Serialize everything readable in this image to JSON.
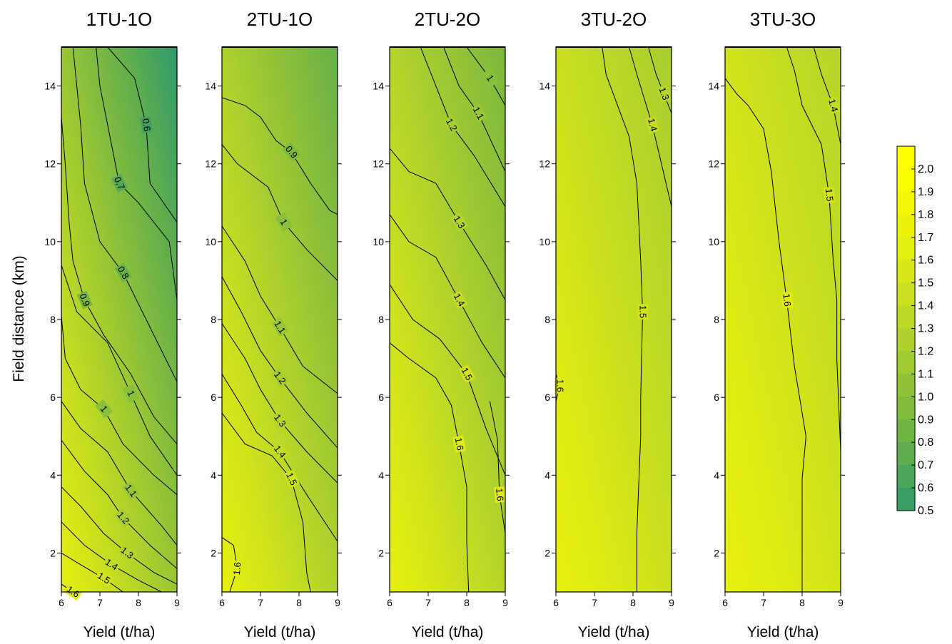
{
  "chart_data": {
    "type": "heatmap",
    "subtype": "filled-contour",
    "ylabel": "Field distance (km)",
    "xlabel": "Yield (t/ha)",
    "xlim": [
      6,
      9
    ],
    "ylim": [
      1,
      15
    ],
    "x_ticks": [
      "6",
      "7",
      "8",
      "9"
    ],
    "y_ticks": [
      "2",
      "4",
      "6",
      "8",
      "10",
      "12",
      "14"
    ],
    "colorbar": {
      "min": 0.5,
      "max": 2.1,
      "labels": [
        "2.0",
        "1.9",
        "1.8",
        "1.7",
        "1.6",
        "1.5",
        "1.4",
        "1.3",
        "1.2",
        "1.1",
        "1.0",
        "0.9",
        "0.8",
        "0.7",
        "0.6",
        "0.5"
      ],
      "colors": {
        "0.5": "#2f9a6c",
        "0.9": "#7ab73e",
        "1.3": "#b5d52a",
        "1.6": "#dfeb13",
        "2.0": "#ffff00"
      }
    },
    "panels": [
      {
        "title": "1TU-1O",
        "contours": [
          {
            "level": "0.6",
            "points": [
              [
                7.2,
                15
              ],
              [
                7.9,
                14.2
              ],
              [
                8.2,
                13
              ],
              [
                8.3,
                11.5
              ],
              [
                9,
                10.5
              ]
            ]
          },
          {
            "level": "0.7",
            "points": [
              [
                6.9,
                15
              ],
              [
                7.0,
                14
              ],
              [
                7.3,
                12.5
              ],
              [
                7.5,
                11.5
              ],
              [
                8.0,
                11
              ],
              [
                8.8,
                10
              ],
              [
                9,
                8.5
              ]
            ]
          },
          {
            "level": "0.8",
            "points": [
              [
                6.3,
                15
              ],
              [
                6.5,
                13
              ],
              [
                6.6,
                11.5
              ],
              [
                7.0,
                10
              ],
              [
                7.6,
                9.2
              ],
              [
                8.2,
                8
              ],
              [
                8.8,
                6.8
              ],
              [
                9,
                6.4
              ]
            ]
          },
          {
            "level": "0.9",
            "points": [
              [
                6,
                13.2
              ],
              [
                6.1,
                12
              ],
              [
                6.2,
                10.5
              ],
              [
                6.3,
                9.5
              ],
              [
                6.6,
                8.5
              ],
              [
                7.1,
                7.6
              ],
              [
                7.8,
                6.6
              ],
              [
                8.4,
                5.5
              ],
              [
                9,
                4.8
              ]
            ]
          },
          {
            "level": "1",
            "points": [
              [
                6,
                9.4
              ],
              [
                6.4,
                8.2
              ],
              [
                7.2,
                7.4
              ],
              [
                7.8,
                6.1
              ],
              [
                8.3,
                5.0
              ],
              [
                9,
                4.0
              ]
            ]
          },
          {
            "level": "1",
            "points": [
              [
                6,
                8.1
              ],
              [
                6.1,
                7
              ],
              [
                6.5,
                6.2
              ],
              [
                7.1,
                5.7
              ],
              [
                7.6,
                4.8
              ],
              [
                8.4,
                4.0
              ],
              [
                9,
                3.5
              ]
            ]
          },
          {
            "level": "1.1",
            "points": [
              [
                6,
                5.9
              ],
              [
                6.5,
                5.2
              ],
              [
                7.2,
                4.6
              ],
              [
                7.8,
                3.6
              ],
              [
                8.6,
                2.7
              ],
              [
                9,
                2.2
              ]
            ]
          },
          {
            "level": "1.2",
            "points": [
              [
                6,
                4.9
              ],
              [
                6.6,
                4.1
              ],
              [
                7.2,
                3.5
              ],
              [
                7.6,
                2.9
              ],
              [
                8.3,
                2.2
              ],
              [
                9,
                1.6
              ]
            ]
          },
          {
            "level": "1.3",
            "points": [
              [
                6,
                3.7
              ],
              [
                6.5,
                3.2
              ],
              [
                7.1,
                2.5
              ],
              [
                7.7,
                2.0
              ],
              [
                8.4,
                1.5
              ],
              [
                9,
                1.2
              ]
            ]
          },
          {
            "level": "1.4",
            "points": [
              [
                6,
                2.8
              ],
              [
                6.6,
                2.2
              ],
              [
                7.3,
                1.7
              ],
              [
                8.0,
                1.3
              ],
              [
                8.6,
                1.0
              ]
            ]
          },
          {
            "level": "1.5",
            "points": [
              [
                6,
                2.0
              ],
              [
                6.5,
                1.7
              ],
              [
                7.1,
                1.35
              ],
              [
                7.6,
                1.0
              ]
            ]
          },
          {
            "level": "1.6",
            "points": [
              [
                6,
                1.2
              ],
              [
                6.3,
                1.0
              ]
            ]
          }
        ]
      },
      {
        "title": "2TU-1O",
        "contours": [
          {
            "level": "0.9",
            "points": [
              [
                6,
                13.7
              ],
              [
                6.6,
                13.5
              ],
              [
                7.0,
                13.2
              ],
              [
                7.4,
                12.6
              ],
              [
                7.8,
                12.3
              ],
              [
                8.3,
                11.5
              ],
              [
                8.8,
                10.8
              ],
              [
                9,
                10.7
              ]
            ]
          },
          {
            "level": "1",
            "points": [
              [
                6,
                12.5
              ],
              [
                6.4,
                12.0
              ],
              [
                7.2,
                11.4
              ],
              [
                7.6,
                10.5
              ],
              [
                8.2,
                9.8
              ],
              [
                9,
                9.0
              ]
            ]
          },
          {
            "level": "1.1",
            "points": [
              [
                6,
                10.4
              ],
              [
                6.6,
                9.5
              ],
              [
                7.0,
                8.6
              ],
              [
                7.5,
                7.8
              ],
              [
                8.1,
                6.8
              ],
              [
                9,
                6.1
              ]
            ]
          },
          {
            "level": "1.2",
            "points": [
              [
                6,
                9.1
              ],
              [
                6.5,
                8.2
              ],
              [
                7.0,
                7.2
              ],
              [
                7.5,
                6.5
              ],
              [
                8.2,
                5.6
              ],
              [
                9,
                4.7
              ]
            ]
          },
          {
            "level": "1.3",
            "points": [
              [
                6,
                7.9
              ],
              [
                6.6,
                7.0
              ],
              [
                7.0,
                6.2
              ],
              [
                7.5,
                5.4
              ],
              [
                8.2,
                4.6
              ],
              [
                9,
                3.8
              ]
            ]
          },
          {
            "level": "1.4",
            "points": [
              [
                6,
                6.6
              ],
              [
                6.5,
                5.8
              ],
              [
                6.9,
                5.1
              ],
              [
                7.5,
                4.6
              ],
              [
                8.2,
                3.5
              ],
              [
                9,
                2.3
              ]
            ]
          },
          {
            "level": "1.5",
            "points": [
              [
                6,
                5.6
              ],
              [
                6.6,
                4.8
              ],
              [
                7.3,
                4.5
              ],
              [
                7.8,
                3.9
              ],
              [
                8.1,
                2.8
              ],
              [
                8.2,
                1.5
              ],
              [
                8.3,
                1.0
              ]
            ]
          },
          {
            "level": "1.6",
            "points": [
              [
                6,
                2.4
              ],
              [
                6.3,
                2.2
              ],
              [
                6.4,
                1.6
              ],
              [
                6.2,
                1.0
              ]
            ]
          }
        ]
      },
      {
        "title": "2TU-2O",
        "contours": [
          {
            "level": "1",
            "points": [
              [
                8.0,
                15
              ],
              [
                8.6,
                14.2
              ],
              [
                9,
                13.5
              ]
            ]
          },
          {
            "level": "1.1",
            "points": [
              [
                7.4,
                15
              ],
              [
                7.8,
                14.0
              ],
              [
                8.3,
                13.3
              ],
              [
                9,
                11.8
              ]
            ]
          },
          {
            "level": "1.2",
            "points": [
              [
                6.8,
                15
              ],
              [
                7.2,
                14.0
              ],
              [
                7.6,
                13.0
              ],
              [
                8.2,
                12.2
              ],
              [
                9,
                10.9
              ]
            ]
          },
          {
            "level": "1.3",
            "points": [
              [
                6,
                12.4
              ],
              [
                6.5,
                11.8
              ],
              [
                7.2,
                11.5
              ],
              [
                7.8,
                10.5
              ],
              [
                8.5,
                9.4
              ],
              [
                9,
                8.5
              ]
            ]
          },
          {
            "level": "1.4",
            "points": [
              [
                6,
                10.7
              ],
              [
                6.5,
                10.0
              ],
              [
                7.2,
                9.6
              ],
              [
                7.8,
                8.5
              ],
              [
                8.4,
                7.4
              ],
              [
                9,
                6.5
              ]
            ]
          },
          {
            "level": "1.5",
            "points": [
              [
                6,
                8.9
              ],
              [
                6.6,
                8.0
              ],
              [
                7.3,
                7.5
              ],
              [
                8.0,
                6.6
              ],
              [
                8.5,
                5.2
              ],
              [
                9,
                4.0
              ]
            ]
          },
          {
            "level": "1.6",
            "points": [
              [
                6,
                7.4
              ],
              [
                6.5,
                7.0
              ],
              [
                7.2,
                6.5
              ],
              [
                7.6,
                5.8
              ],
              [
                7.8,
                4.8
              ],
              [
                8.0,
                3.7
              ],
              [
                8.0,
                2.3
              ],
              [
                8.05,
                1.0
              ]
            ]
          },
          {
            "level": "1.6",
            "points": [
              [
                8.6,
                5.9
              ],
              [
                8.8,
                4.9
              ],
              [
                8.85,
                3.5
              ],
              [
                9,
                2.5
              ]
            ]
          }
        ]
      },
      {
        "title": "3TU-2O",
        "contours": [
          {
            "level": "1.3",
            "points": [
              [
                8.4,
                15
              ],
              [
                8.6,
                14.3
              ],
              [
                8.8,
                13.8
              ],
              [
                9,
                13.3
              ]
            ]
          },
          {
            "level": "1.4",
            "points": [
              [
                7.9,
                15
              ],
              [
                8.1,
                14.3
              ],
              [
                8.5,
                13.0
              ],
              [
                9,
                10.9
              ]
            ]
          },
          {
            "level": "1.5",
            "points": [
              [
                7.2,
                15
              ],
              [
                7.3,
                14.3
              ],
              [
                7.6,
                13.5
              ],
              [
                7.9,
                12.7
              ],
              [
                8.1,
                11.5
              ],
              [
                8.2,
                9.5
              ],
              [
                8.25,
                8.2
              ],
              [
                8.2,
                6.0
              ],
              [
                8.2,
                5.0
              ],
              [
                8.15,
                3.8
              ],
              [
                8.1,
                2.5
              ],
              [
                8.1,
                1.0
              ]
            ]
          },
          {
            "level": "1.6",
            "points": [
              [
                6.0,
                6.6
              ],
              [
                6.1,
                6.3
              ],
              [
                6.0,
                5.9
              ]
            ]
          }
        ]
      },
      {
        "title": "3TU-3O",
        "contours": [
          {
            "level": "1.4",
            "points": [
              [
                8.3,
                15
              ],
              [
                8.5,
                14.3
              ],
              [
                8.8,
                13.5
              ],
              [
                9,
                12.5
              ]
            ]
          },
          {
            "level": "1.5",
            "points": [
              [
                7.6,
                15
              ],
              [
                7.8,
                14.4
              ],
              [
                8.0,
                13.5
              ],
              [
                8.5,
                12.5
              ],
              [
                8.7,
                11.2
              ],
              [
                8.8,
                9.6
              ],
              [
                8.9,
                8.5
              ],
              [
                8.9,
                7.0
              ],
              [
                9,
                4.6
              ]
            ]
          },
          {
            "level": "1.6",
            "points": [
              [
                6,
                14.2
              ],
              [
                6.3,
                13.8
              ],
              [
                6.6,
                13.5
              ],
              [
                7.0,
                12.9
              ],
              [
                7.2,
                11.8
              ],
              [
                7.4,
                10.0
              ],
              [
                7.6,
                8.5
              ],
              [
                7.8,
                6.8
              ],
              [
                8.1,
                5.0
              ],
              [
                8.0,
                3.9
              ],
              [
                8.0,
                2.2
              ],
              [
                8.0,
                1.0
              ]
            ]
          }
        ]
      }
    ]
  }
}
